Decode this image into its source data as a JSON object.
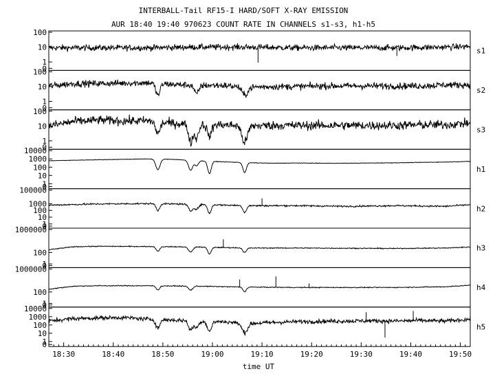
{
  "chart_data": {
    "type": "line",
    "title": "INTERBALL-Tail RF15-I HARD/SOFT X-RAY EMISSION",
    "subtitle": "AUR 18:40 19:40 970623  COUNT RATE IN CHANNELS s1-s3, h1-h5",
    "xlabel": "time UT",
    "xlim": [
      "18:27",
      "19:52"
    ],
    "x_ticks": [
      "18:30",
      "18:40",
      "18:50",
      "19:00",
      "19:10",
      "19:20",
      "19:30",
      "19:40",
      "19:50"
    ],
    "y_scale": "log",
    "grid": false,
    "panels": [
      {
        "name": "s1",
        "y_ticks": [
          "100",
          "10",
          "1",
          "0"
        ],
        "ylim": [
          0.3,
          100
        ],
        "base": [
          [
            0,
            9
          ],
          [
            10,
            9
          ],
          [
            20,
            9
          ],
          [
            30,
            10
          ],
          [
            40,
            10
          ],
          [
            50,
            9
          ],
          [
            60,
            9
          ],
          [
            70,
            9
          ],
          [
            80,
            10
          ],
          [
            85,
            11
          ]
        ],
        "noise": 0.2,
        "features": [],
        "spikes": [
          [
            42.2,
            0.9
          ],
          [
            70.2,
            2.5
          ]
        ]
      },
      {
        "name": "s2",
        "y_ticks": [
          "100",
          "10",
          "1",
          "0"
        ],
        "ylim": [
          0.3,
          100
        ],
        "base": [
          [
            0,
            11
          ],
          [
            5,
            16
          ],
          [
            10,
            16
          ],
          [
            15,
            17
          ],
          [
            20,
            18
          ],
          [
            25,
            14
          ],
          [
            30,
            12
          ],
          [
            35,
            12
          ],
          [
            40,
            9
          ],
          [
            45,
            10
          ],
          [
            50,
            10
          ],
          [
            55,
            11
          ],
          [
            60,
            11
          ],
          [
            65,
            11
          ],
          [
            70,
            11
          ],
          [
            75,
            11
          ],
          [
            80,
            13
          ],
          [
            85,
            13
          ]
        ],
        "noise": 0.22,
        "features": [
          [
            22,
            0.6,
            0.8
          ],
          [
            29.8,
            0.6,
            0.6
          ],
          [
            39.5,
            0.8,
            0.55
          ]
        ],
        "spikes": []
      },
      {
        "name": "s3",
        "y_ticks": [
          "100",
          "10",
          "1",
          "0"
        ],
        "ylim": [
          0.3,
          100
        ],
        "base": [
          [
            0,
            10
          ],
          [
            5,
            20
          ],
          [
            10,
            25
          ],
          [
            15,
            22
          ],
          [
            20,
            22
          ],
          [
            25,
            15
          ],
          [
            30,
            13
          ],
          [
            35,
            12
          ],
          [
            40,
            10
          ],
          [
            45,
            11
          ],
          [
            50,
            11
          ],
          [
            55,
            11
          ],
          [
            60,
            11
          ],
          [
            65,
            11
          ],
          [
            70,
            11
          ],
          [
            75,
            12
          ],
          [
            80,
            12
          ],
          [
            85,
            16
          ]
        ],
        "noise": 0.3,
        "features": [
          [
            22,
            0.6,
            0.8
          ],
          [
            28.6,
            0.6,
            1.2
          ],
          [
            29.8,
            0.6,
            0.9
          ],
          [
            32.4,
            0.6,
            0.8
          ],
          [
            39.5,
            0.8,
            1.1
          ]
        ],
        "spikes": []
      },
      {
        "name": "h1",
        "y_ticks": [
          "10000",
          "1000",
          "100",
          "10",
          "1",
          "0"
        ],
        "ylim": [
          0.3,
          10000
        ],
        "base": [
          [
            0,
            600
          ],
          [
            10,
            800
          ],
          [
            20,
            1000
          ],
          [
            25,
            900
          ],
          [
            30,
            600
          ],
          [
            35,
            450
          ],
          [
            40,
            350
          ],
          [
            45,
            300
          ],
          [
            50,
            320
          ],
          [
            55,
            300
          ],
          [
            60,
            300
          ],
          [
            65,
            320
          ],
          [
            70,
            340
          ],
          [
            75,
            380
          ],
          [
            80,
            420
          ],
          [
            85,
            500
          ]
        ],
        "noise": 0.03,
        "features": [
          [
            22,
            0.6,
            1.3
          ],
          [
            28.6,
            0.6,
            1.2
          ],
          [
            29.8,
            0.5,
            0.6
          ],
          [
            32.4,
            0.5,
            1.5
          ],
          [
            39.5,
            0.5,
            1.2
          ]
        ],
        "spikes": []
      },
      {
        "name": "h2",
        "y_ticks": [
          "100000",
          "1000",
          "100",
          "10",
          "1",
          "0"
        ],
        "ylim": [
          0.3,
          100000
        ],
        "base": [
          [
            0,
            600
          ],
          [
            10,
            900
          ],
          [
            20,
            1000
          ],
          [
            30,
            800
          ],
          [
            40,
            500
          ],
          [
            50,
            500
          ],
          [
            60,
            400
          ],
          [
            70,
            500
          ],
          [
            80,
            400
          ],
          [
            85,
            700
          ]
        ],
        "noise": 0.12,
        "features": [
          [
            22,
            0.5,
            1.0
          ],
          [
            28.6,
            0.6,
            1.0
          ],
          [
            29.8,
            0.6,
            0.7
          ],
          [
            32.4,
            0.5,
            1.3
          ],
          [
            39.5,
            0.5,
            1.0
          ]
        ],
        "spikes": [
          [
            43,
            6000
          ]
        ]
      },
      {
        "name": "h3",
        "y_ticks": [
          "1000000",
          "100",
          "1",
          "0"
        ],
        "ylim": [
          0.3,
          1000000
        ],
        "base": [
          [
            0,
            300
          ],
          [
            5,
            1000
          ],
          [
            10,
            1200
          ],
          [
            20,
            1100
          ],
          [
            30,
            900
          ],
          [
            40,
            600
          ],
          [
            50,
            600
          ],
          [
            60,
            550
          ],
          [
            70,
            500
          ],
          [
            80,
            600
          ],
          [
            85,
            900
          ]
        ],
        "noise": 0.08,
        "features": [
          [
            22,
            0.5,
            0.8
          ],
          [
            28.6,
            0.6,
            0.9
          ],
          [
            32.4,
            0.5,
            1.2
          ],
          [
            39.5,
            0.5,
            0.8
          ]
        ],
        "spikes": [
          [
            35.2,
            20000
          ]
        ]
      },
      {
        "name": "h4",
        "y_ticks": [
          "1000000",
          "100",
          "1",
          "0"
        ],
        "ylim": [
          0.3,
          1000000
        ],
        "base": [
          [
            0,
            300
          ],
          [
            5,
            1000
          ],
          [
            10,
            1200
          ],
          [
            20,
            1200
          ],
          [
            30,
            1000
          ],
          [
            40,
            700
          ],
          [
            50,
            600
          ],
          [
            60,
            600
          ],
          [
            70,
            600
          ],
          [
            80,
            800
          ],
          [
            85,
            1500
          ]
        ],
        "noise": 0.08,
        "features": [
          [
            22,
            0.5,
            0.7
          ],
          [
            28.6,
            0.6,
            0.7
          ],
          [
            39.5,
            0.5,
            0.8
          ]
        ],
        "spikes": [
          [
            38.5,
            15000
          ],
          [
            45.8,
            50000
          ],
          [
            52.5,
            3000
          ]
        ]
      },
      {
        "name": "h5",
        "y_ticks": [
          "10000",
          "1000",
          "100",
          "10",
          "1",
          "0"
        ],
        "ylim": [
          0.3,
          10000
        ],
        "base": [
          [
            0,
            300
          ],
          [
            5,
            600
          ],
          [
            10,
            700
          ],
          [
            15,
            800
          ],
          [
            20,
            500
          ],
          [
            25,
            400
          ],
          [
            30,
            300
          ],
          [
            35,
            250
          ],
          [
            40,
            150
          ],
          [
            45,
            200
          ],
          [
            50,
            250
          ],
          [
            55,
            280
          ],
          [
            60,
            300
          ],
          [
            65,
            320
          ],
          [
            70,
            300
          ],
          [
            75,
            350
          ],
          [
            80,
            300
          ],
          [
            85,
            500
          ]
        ],
        "noise": 0.25,
        "features": [
          [
            22,
            0.6,
            1.0
          ],
          [
            28.6,
            0.6,
            1.1
          ],
          [
            29.8,
            0.6,
            0.8
          ],
          [
            32.4,
            0.6,
            1.2
          ],
          [
            39.5,
            0.8,
            1.1
          ]
        ],
        "spikes": [
          [
            64,
            3500
          ],
          [
            67.8,
            3
          ],
          [
            73.5,
            5000
          ]
        ]
      }
    ]
  }
}
